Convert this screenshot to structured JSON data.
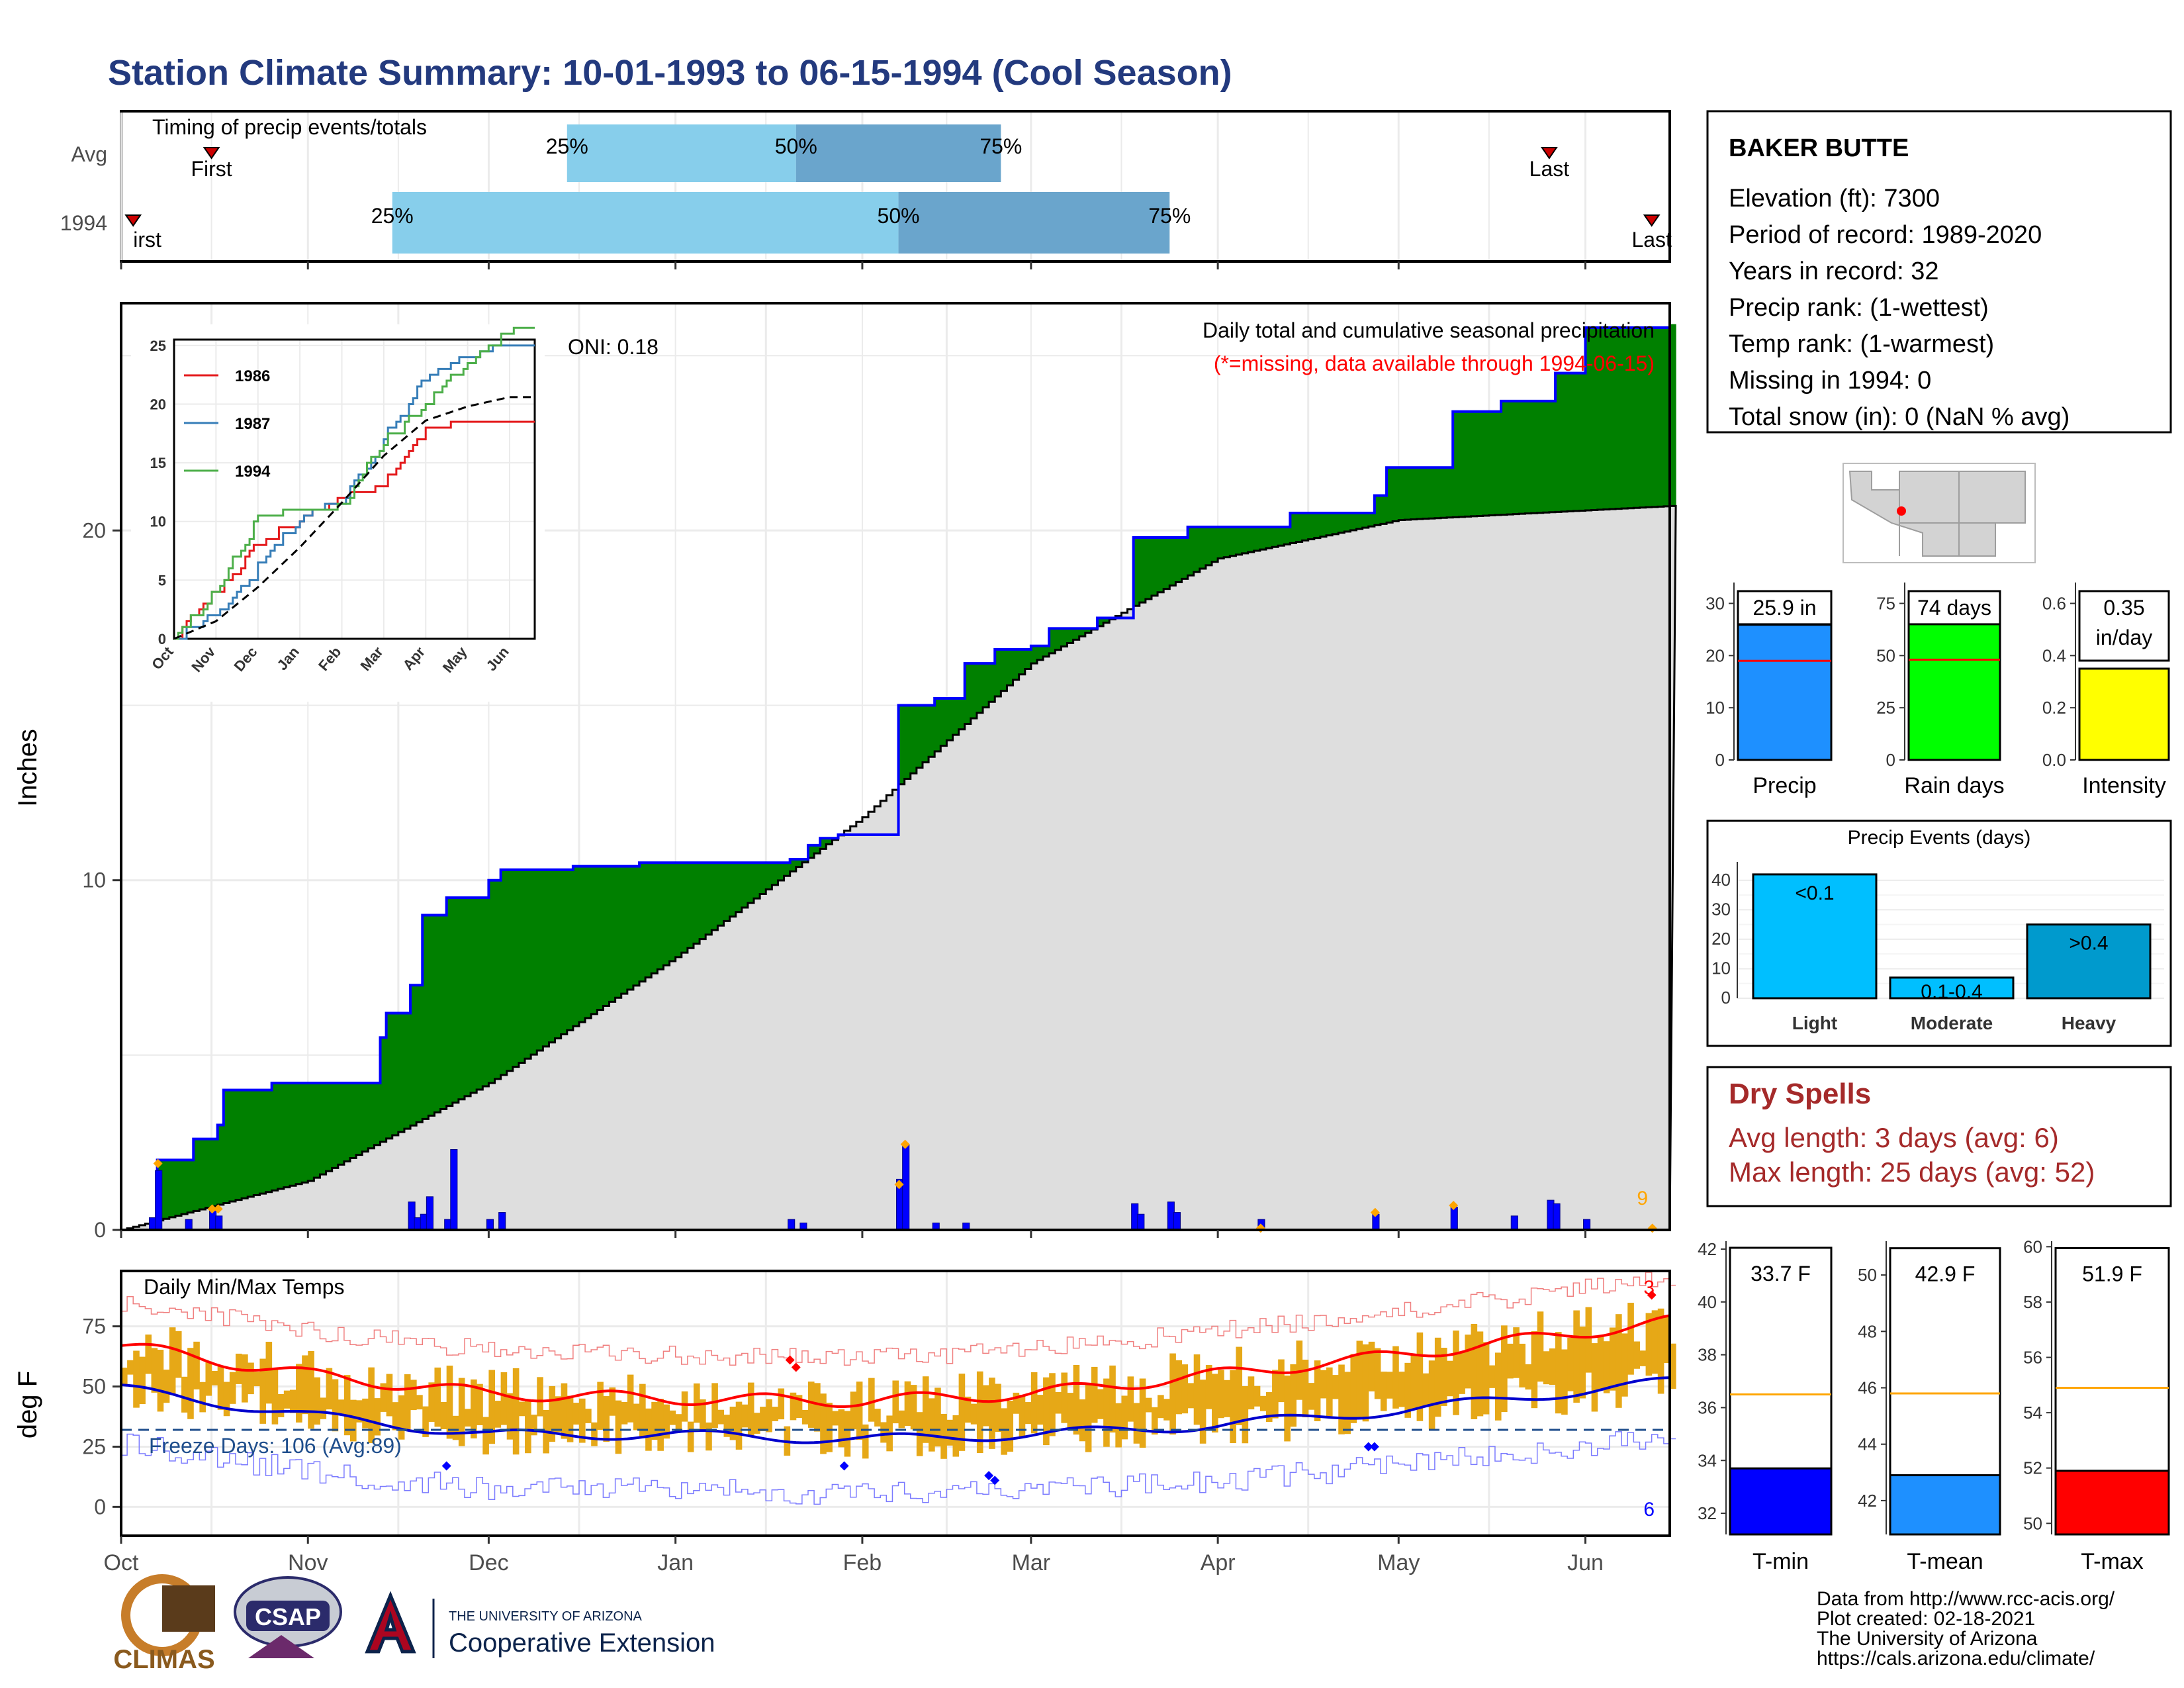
{
  "title": "Station Climate Summary: 10-01-1993 to 06-15-1994 (Cool Season)",
  "colors": {
    "title": "#233a7e",
    "panel_border": "#000000",
    "grid": "#ebebeb",
    "timing_light": "#87ceeb",
    "timing_dark": "#6aa5cc",
    "precip_green": "#008000",
    "precip_brown": "#8b5a00",
    "normal_fill": "#dedede",
    "daily_bar": "#0000ff",
    "marker_orange": "#ffa500",
    "tmax_avg": "#ff0000",
    "tmin_avg": "#0000cd",
    "temp_band": "#e6a817",
    "freeze_line": "#1f4e8c",
    "dry_spell": "#a52a2a"
  },
  "timing": {
    "label": "Timing of precip events/totals",
    "rows": [
      {
        "name": "Avg",
        "first": "First",
        "last": "Last",
        "first_date": "1993-10-16",
        "last_date": "1994-05-26",
        "p25": "1993-12-14",
        "p50": "1994-01-21",
        "p75": "1994-02-24",
        "q25": "25%",
        "q50": "50%",
        "q75": "75%"
      },
      {
        "name": "1994",
        "first": "irst",
        "last": "Last",
        "first_date": "1993-10-03",
        "last_date": "1994-06-12",
        "p25": "1993-11-15",
        "p50": "1994-02-07",
        "p75": "1994-03-24",
        "q25": "25%",
        "q50": "50%",
        "q75": "75%"
      }
    ]
  },
  "month_labels": [
    "Oct",
    "Nov",
    "Dec",
    "Jan",
    "Feb",
    "Mar",
    "Apr",
    "May",
    "Jun"
  ],
  "precip": {
    "ylabel": "Inches",
    "yticks": [
      "0",
      "10",
      "20"
    ],
    "title_line": "Daily total and cumulative seasonal precipitation",
    "missing_note": "(*=missing, data available through 1994-06-15)",
    "oni": "ONI: 0.18",
    "count_label": "9",
    "ymax": 26.5
  },
  "inset": {
    "yticks": [
      "0",
      "5",
      "10",
      "15",
      "20",
      "25"
    ],
    "xticks": [
      "Oct",
      "Nov",
      "Dec",
      "Jan",
      "Feb",
      "Mar",
      "Apr",
      "May",
      "Jun"
    ],
    "legend": [
      {
        "name": "1986",
        "color": "#e41a1c"
      },
      {
        "name": "1987",
        "color": "#377eb8"
      },
      {
        "name": "1994",
        "color": "#4daf4a"
      }
    ]
  },
  "temps": {
    "ylabel": "deg F",
    "title": "Daily Min/Max Temps",
    "yticks": [
      "0",
      "25",
      "50",
      "75"
    ],
    "freeze_label": "Freeze Days: 106 (Avg:89)",
    "record_high_count": "3",
    "record_low_count": "6"
  },
  "station": {
    "name": "BAKER BUTTE",
    "lines": [
      "Elevation (ft): 7300",
      "Period of record: 1989-2020",
      "Years in record: 32",
      "Precip rank:  (1-wettest)",
      "Temp rank:  (1-warmest)",
      "Missing in 1994: 0",
      "Total snow (in): 0 (NaN % avg)"
    ]
  },
  "summary_bars": [
    {
      "name": "Precip",
      "label": "25.9 in",
      "value": 25.9,
      "avg": 19,
      "ymax": 34,
      "yticks": [
        "0",
        "10",
        "20",
        "30"
      ],
      "color": "#1e90ff"
    },
    {
      "name": "Rain days",
      "label": "74 days",
      "value": 74,
      "avg": 48,
      "ymax": 85,
      "yticks": [
        "0",
        "25",
        "50",
        "75"
      ],
      "color": "#00ff00"
    },
    {
      "name": "Intensity",
      "label": "0.35\nin/day",
      "value": 0.35,
      "avg": 0.4,
      "ymax": 0.68,
      "yticks": [
        "0.0",
        "0.2",
        "0.4",
        "0.6"
      ],
      "color": "#ffff00"
    }
  ],
  "events": {
    "title": "Precip Events (days)",
    "yticks": [
      "0",
      "10",
      "20",
      "30",
      "40"
    ],
    "bars": [
      {
        "name": "Light",
        "label": "<0.1",
        "value": 42,
        "color": "#00bfff"
      },
      {
        "name": "Moderate",
        "label": "0.1-0.4",
        "value": 7,
        "color": "#00bfff"
      },
      {
        "name": "Heavy",
        "label": ">0.4",
        "value": 25,
        "color": "#009acd"
      }
    ]
  },
  "dry_spells": {
    "title": "Dry Spells",
    "avg_line": "Avg length: 3 days (avg: 6)",
    "max_line": "Max length: 25 days (avg: 52)"
  },
  "temp_bars": [
    {
      "name": "T-min",
      "label": "33.7 F",
      "value": 33.7,
      "avg": 36.5,
      "ymin": 31.2,
      "ymax": 42.3,
      "yticks": [
        32,
        34,
        36,
        38,
        40,
        42
      ],
      "color": "#0000ff"
    },
    {
      "name": "T-mean",
      "label": "42.9 F",
      "value": 42.9,
      "avg": 45.8,
      "ymin": 40.8,
      "ymax": 51.2,
      "yticks": [
        42,
        44,
        46,
        48,
        50
      ],
      "color": "#1e90ff"
    },
    {
      "name": "T-max",
      "label": "51.9 F",
      "value": 51.9,
      "avg": 54.9,
      "ymin": 49.6,
      "ymax": 60.2,
      "yticks": [
        50,
        52,
        54,
        56,
        58,
        60
      ],
      "color": "#ff0000"
    }
  ],
  "credits": [
    "Data from http://www.rcc-acis.org/",
    "Plot created: 02-18-2021",
    "The University of Arizona",
    "https://cals.arizona.edu/climate/"
  ],
  "logos": {
    "climas": "CLIMAS",
    "csap": "CSAP",
    "ua_small": "THE UNIVERSITY OF ARIZONA",
    "ua_big": "Cooperative Extension"
  },
  "chart_data": [
    {
      "type": "area",
      "title": "Daily total and cumulative seasonal precipitation",
      "ylabel": "Inches",
      "ylim": [
        0,
        26.5
      ],
      "x_range": [
        "1993-10-01",
        "1994-06-15"
      ],
      "series": [
        {
          "name": "cumulative",
          "x": [
            "1993-10-01",
            "1993-10-06",
            "1993-10-07",
            "1993-10-13",
            "1993-10-17",
            "1993-10-18",
            "1993-10-26",
            "1993-10-29",
            "1993-11-13",
            "1993-11-14",
            "1993-11-18",
            "1993-11-20",
            "1993-11-24",
            "1993-12-01",
            "1993-12-03",
            "1993-12-08",
            "1993-12-15",
            "1993-12-26",
            "1994-01-01",
            "1994-01-20",
            "1994-01-23",
            "1994-01-25",
            "1994-01-28",
            "1994-02-07",
            "1994-02-13",
            "1994-02-18",
            "1994-02-23",
            "1994-03-01",
            "1994-03-04",
            "1994-03-12",
            "1994-03-18",
            "1994-03-27",
            "1994-04-13",
            "1994-04-27",
            "1994-04-29",
            "1994-05-10",
            "1994-05-18",
            "1994-05-27",
            "1994-06-01",
            "1994-06-15"
          ],
          "y": [
            0,
            0.3,
            2.0,
            2.6,
            3.0,
            4.0,
            4.2,
            4.2,
            5.5,
            6.2,
            7.0,
            9.0,
            9.5,
            10.0,
            10.3,
            10.3,
            10.4,
            10.5,
            10.5,
            10.6,
            11.0,
            11.2,
            11.3,
            15.0,
            15.2,
            16.2,
            16.6,
            16.7,
            17.2,
            17.5,
            19.8,
            20.1,
            20.5,
            21.0,
            21.8,
            23.4,
            23.7,
            24.5,
            25.8,
            25.9
          ]
        },
        {
          "name": "normal cumulative",
          "x": [
            "1993-10-01",
            "1993-11-01",
            "1993-12-01",
            "1994-01-01",
            "1994-02-01",
            "1994-03-01",
            "1994-04-01",
            "1994-05-01",
            "1994-06-15"
          ],
          "y": [
            0,
            1.4,
            4.2,
            7.8,
            11.8,
            16.2,
            19.2,
            20.3,
            20.7
          ]
        }
      ]
    },
    {
      "type": "bar",
      "title": "Daily total precipitation",
      "x": [
        "1993-10-06",
        "1993-10-07",
        "1993-10-12",
        "1993-10-16",
        "1993-10-17",
        "1993-11-18",
        "1993-11-19",
        "1993-11-20",
        "1993-11-21",
        "1993-11-24",
        "1993-11-25",
        "1993-12-01",
        "1993-12-03",
        "1994-01-20",
        "1994-01-22",
        "1994-02-07",
        "1994-02-08",
        "1994-02-13",
        "1994-02-18",
        "1994-03-18",
        "1994-03-19",
        "1994-03-24",
        "1994-03-25",
        "1994-04-08",
        "1994-04-27",
        "1994-05-10",
        "1994-05-20",
        "1994-05-26",
        "1994-05-27",
        "1994-06-01"
      ],
      "values": [
        0.35,
        1.7,
        0.3,
        0.6,
        0.4,
        0.8,
        0.35,
        0.45,
        0.95,
        0.3,
        2.3,
        0.3,
        0.5,
        0.3,
        0.2,
        1.45,
        2.45,
        0.2,
        0.2,
        0.75,
        0.45,
        0.8,
        0.5,
        0.3,
        0.45,
        0.65,
        0.4,
        0.85,
        0.75,
        0.3
      ]
    },
    {
      "type": "line",
      "title": "Cumulative precipitation comparison (inset)",
      "ylim": [
        0,
        25.5
      ],
      "series": [
        {
          "name": "1986",
          "x": [
            "Oct",
            "Nov",
            "Dec",
            "Jan",
            "Feb",
            "Mar",
            "Apr",
            "May",
            "Jun"
          ],
          "y": [
            0,
            4,
            8,
            10,
            12,
            13,
            18,
            18.2,
            18.5
          ]
        },
        {
          "name": "1987",
          "x": [
            "Oct",
            "Nov",
            "Dec",
            "Jan",
            "Feb",
            "Mar",
            "Apr",
            "May",
            "Jun"
          ],
          "y": [
            0,
            2,
            6,
            10,
            11.5,
            17,
            22,
            24,
            24.8
          ]
        },
        {
          "name": "1994",
          "x": [
            "Oct",
            "Nov",
            "Dec",
            "Jan",
            "Feb",
            "Mar",
            "Apr",
            "May",
            "Jun"
          ],
          "y": [
            0,
            4,
            10.3,
            10.5,
            11.3,
            16.7,
            20.1,
            23.4,
            25.9
          ]
        },
        {
          "x": [
            "Oct",
            "Nov",
            "Dec",
            "Jan",
            "Feb",
            "Mar",
            "Apr",
            "May",
            "Jun"
          ],
          "y": [
            0,
            1.5,
            4.4,
            7.8,
            11.6,
            15.6,
            18.6,
            19.8,
            20.6
          ]
        }
      ]
    },
    {
      "type": "line",
      "title": "Daily Min/Max Temps",
      "ylabel": "deg F",
      "ylim": [
        -12,
        98
      ],
      "series": [
        {
          "name": "avg max",
          "x": [
            "1993-10-01",
            "1993-11-01",
            "1993-12-01",
            "1994-01-01",
            "1994-02-01",
            "1994-03-01",
            "1994-04-01",
            "1994-05-01",
            "1994-06-15"
          ],
          "y": [
            67,
            55,
            47,
            45,
            44,
            47,
            55,
            63,
            77
          ]
        },
        {
          "name": "avg min",
          "x": [
            "1993-10-01",
            "1993-11-01",
            "1993-12-01",
            "1994-01-01",
            "1994-02-01",
            "1994-03-01",
            "1994-04-01",
            "1994-05-01",
            "1994-06-15"
          ],
          "y": [
            49,
            38,
            30,
            30,
            28,
            30,
            34,
            40,
            52
          ]
        },
        {
          "name": "freeze threshold",
          "x": [
            "1993-10-01",
            "1994-06-15"
          ],
          "y": [
            32,
            32
          ]
        }
      ]
    },
    {
      "type": "bar",
      "categories": [
        "Precip",
        "Rain days",
        "Intensity"
      ],
      "values": [
        25.9,
        74,
        0.35
      ]
    },
    {
      "type": "bar",
      "title": "Precip Events (days)",
      "categories": [
        "Light",
        "Moderate",
        "Heavy"
      ],
      "values": [
        42,
        7,
        25
      ]
    },
    {
      "type": "bar",
      "categories": [
        "T-min",
        "T-mean",
        "T-max"
      ],
      "values": [
        33.7,
        42.9,
        51.9
      ]
    }
  ]
}
